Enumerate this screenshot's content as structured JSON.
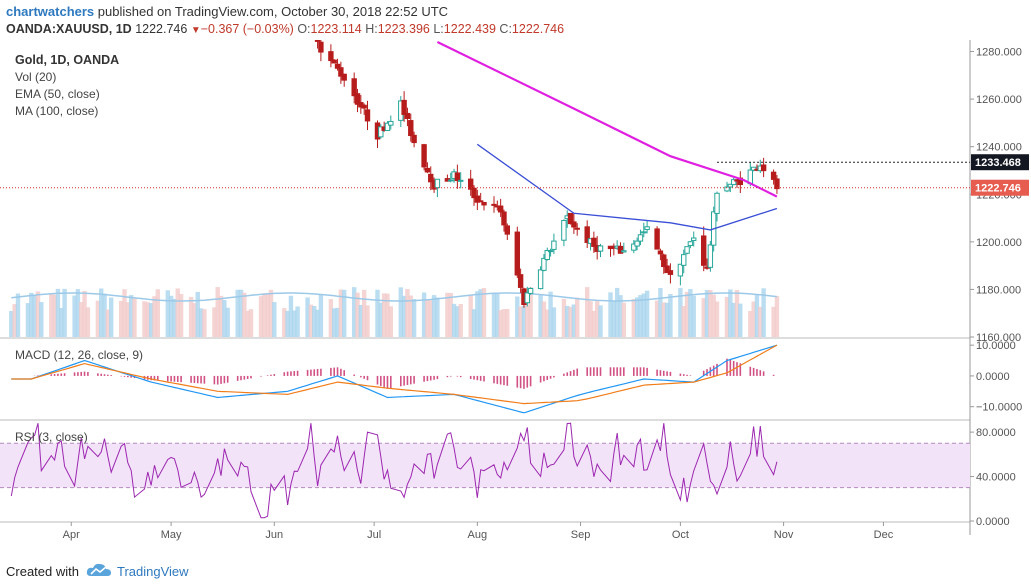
{
  "header": {
    "author": "chartwatchers",
    "published_text": "published on TradingView.com, October 30, 2018 22:52 UTC",
    "symbol": "OANDA:XAUUSD, 1D",
    "last": "1222.746",
    "change": "−0.367 (−0.03%)",
    "o_label": "O:",
    "o_value": "1223.114",
    "h_label": "H:",
    "h_value": "1223.396",
    "l_label": "L:",
    "l_value": "1222.439",
    "c_label": "C:",
    "c_value": "1222.746"
  },
  "legend": {
    "title": "Gold, 1D, OANDA",
    "vol": "Vol (20)",
    "ema": "EMA (50, close)",
    "ma": "MA (100, close)",
    "macd": "MACD (12, 26, close, 9)",
    "rsi": "RSI (3, close)"
  },
  "footer": {
    "created_with": "Created with",
    "brand": "TradingView"
  },
  "colors": {
    "up": "#26a69a",
    "down": "#b71c1c",
    "ema": "#3a4fd6",
    "ma": "#e020e0",
    "macd": "#2196f3",
    "signal": "#f07d1a",
    "rsi": "#9c27b0",
    "rsi_band": "#f3e3f9",
    "price_line": "#d32f2f",
    "volume": "#9cc9e8"
  },
  "chart_data": {
    "type": "candlestick",
    "x_ticks": [
      "Apr",
      "May",
      "Jun",
      "Jul",
      "Aug",
      "Sep",
      "Oct",
      "Nov",
      "Dec"
    ],
    "price_axis": {
      "ticks": [
        "1280.000",
        "1260.000",
        "1240.000",
        "1220.000",
        "1200.000",
        "1180.000",
        "1160.000"
      ],
      "range": [
        1160,
        1284
      ],
      "last_price": "1222.746",
      "marked_level": "1233.468"
    },
    "price_anchors": [
      {
        "date": "2018-06-14",
        "close": 1283
      },
      {
        "date": "2018-06-22",
        "close": 1269
      },
      {
        "date": "2018-07-02",
        "close": 1245
      },
      {
        "date": "2018-07-09",
        "close": 1258
      },
      {
        "date": "2018-07-13",
        "close": 1242
      },
      {
        "date": "2018-07-19",
        "close": 1224
      },
      {
        "date": "2018-07-25",
        "close": 1228
      },
      {
        "date": "2018-08-01",
        "close": 1218
      },
      {
        "date": "2018-08-08",
        "close": 1213
      },
      {
        "date": "2018-08-15",
        "close": 1175
      },
      {
        "date": "2018-08-20",
        "close": 1190
      },
      {
        "date": "2018-08-28",
        "close": 1210
      },
      {
        "date": "2018-09-05",
        "close": 1198
      },
      {
        "date": "2018-09-14",
        "close": 1196
      },
      {
        "date": "2018-09-21",
        "close": 1205
      },
      {
        "date": "2018-09-28",
        "close": 1185
      },
      {
        "date": "2018-10-05",
        "close": 1202
      },
      {
        "date": "2018-10-09",
        "close": 1188
      },
      {
        "date": "2018-10-12",
        "close": 1222
      },
      {
        "date": "2018-10-19",
        "close": 1226
      },
      {
        "date": "2018-10-25",
        "close": 1233
      },
      {
        "date": "2018-10-30",
        "close": 1222.746
      }
    ],
    "ema_50": [
      {
        "date": "2018-08-01",
        "value": 1241
      },
      {
        "date": "2018-08-30",
        "value": 1212
      },
      {
        "date": "2018-09-28",
        "value": 1208
      },
      {
        "date": "2018-10-10",
        "value": 1205
      },
      {
        "date": "2018-10-30",
        "value": 1214
      }
    ],
    "ma_100": [
      {
        "date": "2018-07-20",
        "value": 1284
      },
      {
        "date": "2018-08-30",
        "value": 1256
      },
      {
        "date": "2018-09-28",
        "value": 1236
      },
      {
        "date": "2018-10-20",
        "value": 1226
      },
      {
        "date": "2018-10-30",
        "value": 1219
      }
    ],
    "macd_axis": {
      "ticks": [
        "10.0000",
        "0.0000",
        "−10.0000"
      ],
      "range": [
        -14,
        12
      ]
    },
    "macd_anchors": [
      {
        "date": "2018-03-20",
        "macd": -1,
        "signal": -1
      },
      {
        "date": "2018-04-05",
        "macd": 5,
        "signal": 4
      },
      {
        "date": "2018-04-25",
        "macd": -2,
        "signal": -1
      },
      {
        "date": "2018-05-15",
        "macd": -7,
        "signal": -5
      },
      {
        "date": "2018-06-05",
        "macd": -5,
        "signal": -6
      },
      {
        "date": "2018-06-20",
        "macd": 0,
        "signal": -2
      },
      {
        "date": "2018-07-05",
        "macd": -7,
        "signal": -4
      },
      {
        "date": "2018-07-25",
        "macd": -6,
        "signal": -6
      },
      {
        "date": "2018-08-15",
        "macd": -12,
        "signal": -9
      },
      {
        "date": "2018-09-01",
        "macd": -6,
        "signal": -8
      },
      {
        "date": "2018-09-20",
        "macd": -1,
        "signal": -3
      },
      {
        "date": "2018-10-05",
        "macd": -2,
        "signal": -2
      },
      {
        "date": "2018-10-15",
        "macd": 5,
        "signal": 1
      },
      {
        "date": "2018-10-30",
        "macd": 10,
        "signal": 10
      }
    ],
    "rsi_axis": {
      "ticks": [
        "80.0000",
        "40.0000",
        "0.0000"
      ],
      "range": [
        0,
        90
      ],
      "band": [
        30,
        70
      ]
    }
  }
}
